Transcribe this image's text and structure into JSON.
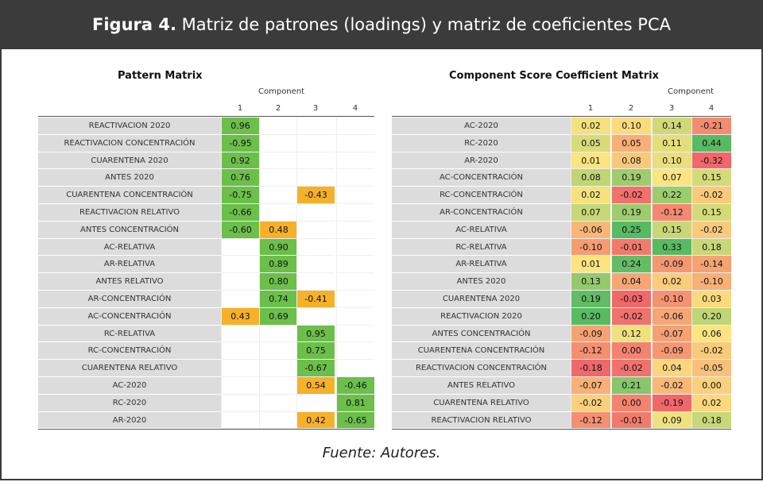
{
  "header": {
    "figure": "Figura 4.",
    "title": " Matriz de patrones (loadings) y matriz de coeficientes PCA"
  },
  "pattern_matrix": {
    "title": "Pattern Matrix",
    "column_group": "Component",
    "columns": [
      "1",
      "2",
      "3",
      "4"
    ],
    "rows": [
      {
        "label": "REACTIVACION 2020",
        "cells": [
          "0.96",
          null,
          null,
          null
        ],
        "colors": [
          "#6cbf4a",
          null,
          null,
          null
        ]
      },
      {
        "label": "REACTIVACION CONCENTRACIÓN",
        "cells": [
          "-0.95",
          null,
          null,
          null
        ],
        "colors": [
          "#6cbf4a",
          null,
          null,
          null
        ]
      },
      {
        "label": "CUARENTENA 2020",
        "cells": [
          "0.92",
          null,
          null,
          null
        ],
        "colors": [
          "#6cbf4a",
          null,
          null,
          null
        ]
      },
      {
        "label": "ANTES 2020",
        "cells": [
          "0.76",
          null,
          null,
          null
        ],
        "colors": [
          "#6cbf4a",
          null,
          null,
          null
        ]
      },
      {
        "label": "CUARENTENA CONCENTRACIÓN",
        "cells": [
          "-0.75",
          null,
          "-0.43",
          null
        ],
        "colors": [
          "#6cbf4a",
          null,
          "#f6b12a",
          null
        ]
      },
      {
        "label": "REACTIVACION RELATIVO",
        "cells": [
          "-0.66",
          null,
          null,
          null
        ],
        "colors": [
          "#6cbf4a",
          null,
          null,
          null
        ]
      },
      {
        "label": "ANTES CONCENTRACIÓN",
        "cells": [
          "-0.60",
          "0.48",
          null,
          null
        ],
        "colors": [
          "#6cbf4a",
          "#f6b12a",
          null,
          null
        ]
      },
      {
        "label": "AC-RELATIVA",
        "cells": [
          null,
          "0.90",
          null,
          null
        ],
        "colors": [
          null,
          "#6cbf4a",
          null,
          null
        ]
      },
      {
        "label": "AR-RELATIVA",
        "cells": [
          null,
          "0.89",
          null,
          null
        ],
        "colors": [
          null,
          "#6cbf4a",
          null,
          null
        ]
      },
      {
        "label": "ANTES RELATIVO",
        "cells": [
          null,
          "0.80",
          null,
          null
        ],
        "colors": [
          null,
          "#6cbf4a",
          null,
          null
        ]
      },
      {
        "label": "AR-CONCENTRACIÓN",
        "cells": [
          null,
          "0.74",
          "-0.41",
          null
        ],
        "colors": [
          null,
          "#6cbf4a",
          "#f6b12a",
          null
        ]
      },
      {
        "label": "AC-CONCENTRACIÓN",
        "cells": [
          "0.43",
          "0.69",
          null,
          null
        ],
        "colors": [
          "#f6b12a",
          "#6cbf4a",
          null,
          null
        ]
      },
      {
        "label": "RC-RELATIVA",
        "cells": [
          null,
          null,
          "0.95",
          null
        ],
        "colors": [
          null,
          null,
          "#6cbf4a",
          null
        ]
      },
      {
        "label": "RC-CONCENTRACIÓN",
        "cells": [
          null,
          null,
          "0.75",
          null
        ],
        "colors": [
          null,
          null,
          "#6cbf4a",
          null
        ]
      },
      {
        "label": "CUARENTENA RELATIVO",
        "cells": [
          null,
          null,
          "-0.67",
          null
        ],
        "colors": [
          null,
          null,
          "#6cbf4a",
          null
        ]
      },
      {
        "label": "AC-2020",
        "cells": [
          null,
          null,
          "0.54",
          "-0.46"
        ],
        "colors": [
          null,
          null,
          "#f6b12a",
          "#6cbf4a"
        ]
      },
      {
        "label": "RC-2020",
        "cells": [
          null,
          null,
          null,
          "0.81"
        ],
        "colors": [
          null,
          null,
          null,
          "#6cbf4a"
        ]
      },
      {
        "label": "AR-2020",
        "cells": [
          null,
          null,
          "0.42",
          "-0.65"
        ],
        "colors": [
          null,
          null,
          "#f6b12a",
          "#6cbf4a"
        ]
      }
    ]
  },
  "coefficient_matrix": {
    "title": "Component Score Coefficient Matrix",
    "column_group": "Component",
    "columns": [
      "1",
      "2",
      "3",
      "4"
    ],
    "rows": [
      {
        "label": "AC-2020",
        "cells": [
          "0.02",
          "0.10",
          "0.14",
          "-0.21"
        ]
      },
      {
        "label": "RC-2020",
        "cells": [
          "0.05",
          "0.05",
          "0.11",
          "0.44"
        ]
      },
      {
        "label": "AR-2020",
        "cells": [
          "0.01",
          "0.08",
          "0.10",
          "-0.32"
        ]
      },
      {
        "label": "AC-CONCENTRACIÓN",
        "cells": [
          "0.08",
          "0.19",
          "0.07",
          "0.15"
        ]
      },
      {
        "label": "RC-CONCENTRACIÓN",
        "cells": [
          "0.02",
          "-0.02",
          "0.22",
          "-0.02"
        ]
      },
      {
        "label": "AR-CONCENTRACIÓN",
        "cells": [
          "0.07",
          "0.19",
          "-0.12",
          "0.15"
        ]
      },
      {
        "label": "AC-RELATIVA",
        "cells": [
          "-0.06",
          "0.25",
          "0.15",
          "-0.02"
        ]
      },
      {
        "label": "RC-RELATIVA",
        "cells": [
          "-0.10",
          "-0.01",
          "0.33",
          "0.18"
        ]
      },
      {
        "label": "AR-RELATIVA",
        "cells": [
          "0.01",
          "0.24",
          "-0.09",
          "-0.14"
        ]
      },
      {
        "label": "ANTES 2020",
        "cells": [
          "0.13",
          "0.04",
          "0.02",
          "-0.10"
        ]
      },
      {
        "label": "CUARENTENA 2020",
        "cells": [
          "0.19",
          "-0.03",
          "-0.10",
          "0.03"
        ]
      },
      {
        "label": "REACTIVACION 2020",
        "cells": [
          "0.20",
          "-0.02",
          "-0.06",
          "0.20"
        ]
      },
      {
        "label": "ANTES CONCENTRACIÓN",
        "cells": [
          "-0.09",
          "0.12",
          "-0.07",
          "0.06"
        ]
      },
      {
        "label": "CUARENTENA CONCENTRACIÓN",
        "cells": [
          "-0.12",
          "0.00",
          "-0.09",
          "-0.02"
        ]
      },
      {
        "label": "REACTIVACION CONCENTRACIÓN",
        "cells": [
          "-0.18",
          "-0.02",
          "0.04",
          "-0.05"
        ]
      },
      {
        "label": "ANTES RELATIVO",
        "cells": [
          "-0.07",
          "0.21",
          "-0.02",
          "0.00"
        ]
      },
      {
        "label": "CUARENTENA RELATIVO",
        "cells": [
          "-0.02",
          "0.00",
          "-0.19",
          "0.02"
        ]
      },
      {
        "label": "REACTIVACION RELATIVO",
        "cells": [
          "-0.12",
          "-0.01",
          "0.09",
          "0.18"
        ]
      }
    ]
  },
  "source": "Fuente: Autores."
}
